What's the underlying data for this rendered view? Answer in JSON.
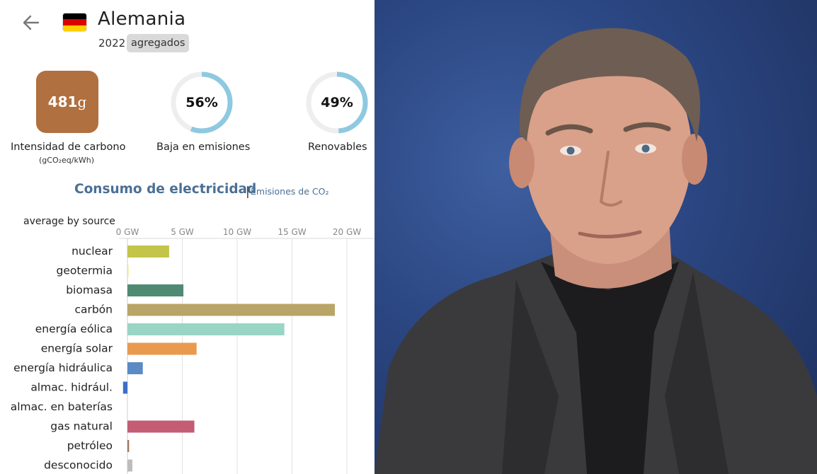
{
  "header": {
    "country": "Alemania",
    "year": "2022",
    "mode_badge": "agregados",
    "flag_colors": [
      "#000000",
      "#dd0000",
      "#ffce00"
    ]
  },
  "metrics": {
    "carbon_intensity": {
      "value": "481",
      "unit": "g",
      "label": "Intensidad de carbono",
      "sublabel": "(gCO₂eq/kWh)",
      "color": "#b0703f"
    },
    "low_emission": {
      "value_text": "56%",
      "fraction": 0.56,
      "label": "Baja en emisiones",
      "color": "#8ec9e0"
    },
    "renewable": {
      "value_text": "49%",
      "fraction": 0.49,
      "label": "Renovables",
      "color": "#8ec9e0"
    }
  },
  "section": {
    "active_tab": "Consumo de electricidad",
    "divider": "|",
    "other_tab": "Emisiones de CO₂"
  },
  "chart_data": {
    "type": "bar",
    "orientation": "horizontal",
    "subtitle": "average by source",
    "x_ticks": [
      "0 GW",
      "5 GW",
      "10 GW",
      "15 GW",
      "20 GW"
    ],
    "xlim": [
      0,
      22.5
    ],
    "grid": true,
    "categories": [
      "nuclear",
      "geotermia",
      "biomasa",
      "carbón",
      "energía eólica",
      "energía solar",
      "energía hidráulica",
      "almac. hidrául.",
      "almac. en baterías",
      "gas natural",
      "petróleo",
      "desconocido"
    ],
    "values": [
      3.8,
      0.05,
      5.1,
      18.9,
      14.3,
      6.3,
      1.4,
      -0.4,
      0,
      6.1,
      0.15,
      0.45
    ],
    "colors": [
      "#c2c548",
      "#f0e68c",
      "#4f8a75",
      "#b8a567",
      "#99d5c5",
      "#e99a4f",
      "#5b8ac4",
      "#3c6fc6",
      "#bbbbbb",
      "#c45c75",
      "#a0775b",
      "#bdbdbd"
    ]
  },
  "photo": {
    "description_icon": "person-portrait"
  }
}
